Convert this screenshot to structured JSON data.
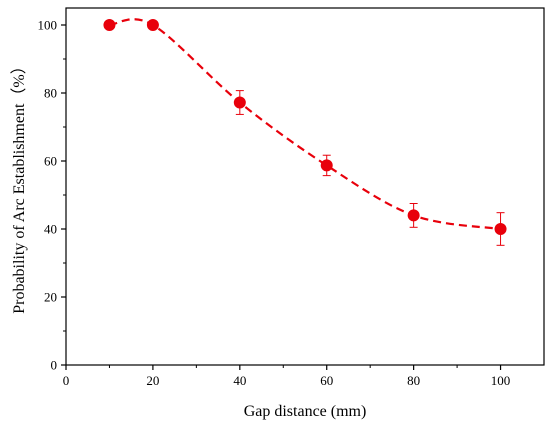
{
  "chart_data": {
    "type": "line",
    "title": "",
    "xlabel": "Gap distance (mm)",
    "ylabel": "Probability of Arc Establishment（%）",
    "xlim": [
      0,
      110
    ],
    "ylim": [
      0,
      105
    ],
    "x_ticks": [
      0,
      20,
      40,
      60,
      80,
      100
    ],
    "y_ticks": [
      0,
      20,
      40,
      60,
      80,
      100
    ],
    "grid": false,
    "legend": "none",
    "series": [
      {
        "x": [
          10,
          20,
          40,
          60,
          80,
          100
        ],
        "y": [
          100,
          100,
          77.2,
          58.7,
          44,
          40
        ],
        "error": [
          0,
          0,
          3.5,
          3,
          3.5,
          4.8
        ],
        "color": "#e8000b",
        "line_style": "dashed",
        "marker": "circle"
      }
    ]
  }
}
